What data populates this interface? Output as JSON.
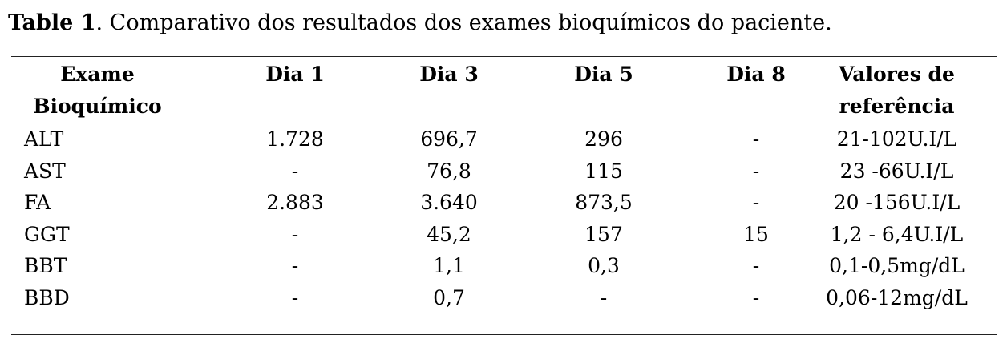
{
  "caption": {
    "label": "Table 1",
    "text": ". Comparativo dos resultados dos exames bioquímicos do paciente."
  },
  "table": {
    "headers": [
      [
        "Exame",
        "Bioquímico"
      ],
      [
        "Dia 1"
      ],
      [
        "Dia 3"
      ],
      [
        "Dia 5"
      ],
      [
        "Dia 8"
      ],
      [
        "Valores de",
        "referência"
      ]
    ],
    "rows": [
      [
        "ALT",
        "1.728",
        "696,7",
        "296",
        "-",
        "21-102U.I/L"
      ],
      [
        "AST",
        "-",
        "76,8",
        "115",
        "-",
        "23 -66U.I/L"
      ],
      [
        "FA",
        "2.883",
        "3.640",
        "873,5",
        "-",
        "20 -156U.I/L"
      ],
      [
        "GGT",
        "-",
        "45,2",
        "157",
        "15",
        "1,2 - 6,4U.I/L"
      ],
      [
        "BBT",
        "-",
        "1,1",
        "0,3",
        "-",
        "0,1-0,5mg/dL"
      ],
      [
        "BBD",
        "-",
        "0,7",
        "-",
        "-",
        "0,06-12mg/dL"
      ]
    ]
  }
}
